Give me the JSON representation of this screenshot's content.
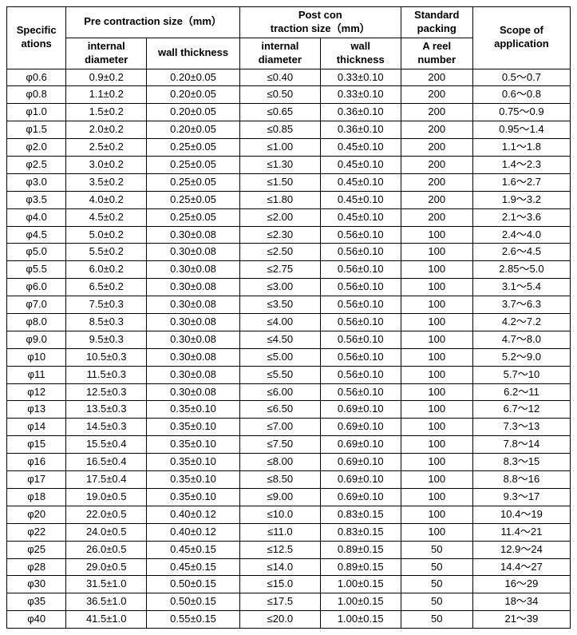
{
  "headers": {
    "specifications": "Specific\nations",
    "pre_contraction": "Pre contraction size（mm）",
    "post_contraction": "Post con\ntraction size（mm）",
    "standard_packing": "Standard\npacking",
    "scope": "Scope of\napplication",
    "internal_diameter": "internal\ndiameter",
    "wall_thickness": "wall thickness",
    "wall_thickness2": "wall\nthickness",
    "reel_number": "A reel\nnumber"
  },
  "rows": [
    {
      "spec": "φ0.6",
      "pre_id": "0.9±0.2",
      "pre_wt": "0.20±0.05",
      "post_id": "≤0.40",
      "post_wt": "0.33±0.10",
      "pack": "200",
      "scope": "0.5～0.7"
    },
    {
      "spec": "φ0.8",
      "pre_id": "1.1±0.2",
      "pre_wt": "0.20±0.05",
      "post_id": "≤0.50",
      "post_wt": "0.33±0.10",
      "pack": "200",
      "scope": "0.6～0.8"
    },
    {
      "spec": "φ1.0",
      "pre_id": "1.5±0.2",
      "pre_wt": "0.20±0.05",
      "post_id": "≤0.65",
      "post_wt": "0.36±0.10",
      "pack": "200",
      "scope": "0.75～0.9"
    },
    {
      "spec": "φ1.5",
      "pre_id": "2.0±0.2",
      "pre_wt": "0.20±0.05",
      "post_id": "≤0.85",
      "post_wt": "0.36±0.10",
      "pack": "200",
      "scope": "0.95～1.4"
    },
    {
      "spec": "φ2.0",
      "pre_id": "2.5±0.2",
      "pre_wt": "0.25±0.05",
      "post_id": "≤1.00",
      "post_wt": "0.45±0.10",
      "pack": "200",
      "scope": "1.1～1.8"
    },
    {
      "spec": "φ2.5",
      "pre_id": "3.0±0.2",
      "pre_wt": "0.25±0.05",
      "post_id": "≤1.30",
      "post_wt": "0.45±0.10",
      "pack": "200",
      "scope": "1.4～2.3"
    },
    {
      "spec": "φ3.0",
      "pre_id": "3.5±0.2",
      "pre_wt": "0.25±0.05",
      "post_id": "≤1.50",
      "post_wt": "0.45±0.10",
      "pack": "200",
      "scope": "1.6～2.7"
    },
    {
      "spec": "φ3.5",
      "pre_id": "4.0±0.2",
      "pre_wt": "0.25±0.05",
      "post_id": "≤1.80",
      "post_wt": "0.45±0.10",
      "pack": "200",
      "scope": "1.9～3.2"
    },
    {
      "spec": "φ4.0",
      "pre_id": "4.5±0.2",
      "pre_wt": "0.25±0.05",
      "post_id": "≤2.00",
      "post_wt": "0.45±0.10",
      "pack": "200",
      "scope": "2.1～3.6"
    },
    {
      "spec": "φ4.5",
      "pre_id": "5.0±0.2",
      "pre_wt": "0.30±0.08",
      "post_id": "≤2.30",
      "post_wt": "0.56±0.10",
      "pack": "100",
      "scope": "2.4～4.0"
    },
    {
      "spec": "φ5.0",
      "pre_id": "5.5±0.2",
      "pre_wt": "0.30±0.08",
      "post_id": "≤2.50",
      "post_wt": "0.56±0.10",
      "pack": "100",
      "scope": "2.6～4.5"
    },
    {
      "spec": "φ5.5",
      "pre_id": "6.0±0.2",
      "pre_wt": "0.30±0.08",
      "post_id": "≤2.75",
      "post_wt": "0.56±0.10",
      "pack": "100",
      "scope": "2.85～5.0"
    },
    {
      "spec": "φ6.0",
      "pre_id": "6.5±0.2",
      "pre_wt": "0.30±0.08",
      "post_id": "≤3.00",
      "post_wt": "0.56±0.10",
      "pack": "100",
      "scope": "3.1～5.4"
    },
    {
      "spec": "φ7.0",
      "pre_id": "7.5±0.3",
      "pre_wt": "0.30±0.08",
      "post_id": "≤3.50",
      "post_wt": "0.56±0.10",
      "pack": "100",
      "scope": "3.7～6.3"
    },
    {
      "spec": "φ8.0",
      "pre_id": "8.5±0.3",
      "pre_wt": "0.30±0.08",
      "post_id": "≤4.00",
      "post_wt": "0.56±0.10",
      "pack": "100",
      "scope": "4.2～7.2"
    },
    {
      "spec": "φ9.0",
      "pre_id": "9.5±0.3",
      "pre_wt": "0.30±0.08",
      "post_id": "≤4.50",
      "post_wt": "0.56±0.10",
      "pack": "100",
      "scope": "4.7～8.0"
    },
    {
      "spec": "φ10",
      "pre_id": "10.5±0.3",
      "pre_wt": "0.30±0.08",
      "post_id": "≤5.00",
      "post_wt": "0.56±0.10",
      "pack": "100",
      "scope": "5.2～9.0"
    },
    {
      "spec": "φ11",
      "pre_id": "11.5±0.3",
      "pre_wt": "0.30±0.08",
      "post_id": "≤5.50",
      "post_wt": "0.56±0.10",
      "pack": "100",
      "scope": "5.7～10"
    },
    {
      "spec": "φ12",
      "pre_id": "12.5±0.3",
      "pre_wt": "0.30±0.08",
      "post_id": "≤6.00",
      "post_wt": "0.56±0.10",
      "pack": "100",
      "scope": "6.2～11"
    },
    {
      "spec": "φ13",
      "pre_id": "13.5±0.3",
      "pre_wt": "0.35±0.10",
      "post_id": "≤6.50",
      "post_wt": "0.69±0.10",
      "pack": "100",
      "scope": "6.7～12"
    },
    {
      "spec": "φ14",
      "pre_id": "14.5±0.3",
      "pre_wt": "0.35±0.10",
      "post_id": "≤7.00",
      "post_wt": "0.69±0.10",
      "pack": "100",
      "scope": "7.3～13"
    },
    {
      "spec": "φ15",
      "pre_id": "15.5±0.4",
      "pre_wt": "0.35±0.10",
      "post_id": "≤7.50",
      "post_wt": "0.69±0.10",
      "pack": "100",
      "scope": "7.8～14"
    },
    {
      "spec": "φ16",
      "pre_id": "16.5±0.4",
      "pre_wt": "0.35±0.10",
      "post_id": "≤8.00",
      "post_wt": "0.69±0.10",
      "pack": "100",
      "scope": "8.3～15"
    },
    {
      "spec": "φ17",
      "pre_id": "17.5±0.4",
      "pre_wt": "0.35±0.10",
      "post_id": "≤8.50",
      "post_wt": "0.69±0.10",
      "pack": "100",
      "scope": "8.8～16"
    },
    {
      "spec": "φ18",
      "pre_id": "19.0±0.5",
      "pre_wt": "0.35±0.10",
      "post_id": "≤9.00",
      "post_wt": "0.69±0.10",
      "pack": "100",
      "scope": "9.3～17"
    },
    {
      "spec": "φ20",
      "pre_id": "22.0±0.5",
      "pre_wt": "0.40±0.12",
      "post_id": "≤10.0",
      "post_wt": "0.83±0.15",
      "pack": "100",
      "scope": "10.4～19"
    },
    {
      "spec": "φ22",
      "pre_id": "24.0±0.5",
      "pre_wt": "0.40±0.12",
      "post_id": "≤11.0",
      "post_wt": "0.83±0.15",
      "pack": "100",
      "scope": "11.4～21"
    },
    {
      "spec": "φ25",
      "pre_id": "26.0±0.5",
      "pre_wt": "0.45±0.15",
      "post_id": "≤12.5",
      "post_wt": "0.89±0.15",
      "pack": "50",
      "scope": "12.9～24"
    },
    {
      "spec": "φ28",
      "pre_id": "29.0±0.5",
      "pre_wt": "0.45±0.15",
      "post_id": "≤14.0",
      "post_wt": "0.89±0.15",
      "pack": "50",
      "scope": "14.4～27"
    },
    {
      "spec": "φ30",
      "pre_id": "31.5±1.0",
      "pre_wt": "0.50±0.15",
      "post_id": "≤15.0",
      "post_wt": "1.00±0.15",
      "pack": "50",
      "scope": "16～29"
    },
    {
      "spec": "φ35",
      "pre_id": "36.5±1.0",
      "pre_wt": "0.50±0.15",
      "post_id": "≤17.5",
      "post_wt": "1.00±0.15",
      "pack": "50",
      "scope": "18～34"
    },
    {
      "spec": "φ40",
      "pre_id": "41.5±1.0",
      "pre_wt": "0.55±0.15",
      "post_id": "≤20.0",
      "post_wt": "1.00±0.15",
      "pack": "50",
      "scope": "21～39"
    }
  ],
  "style": {
    "background_color": "#ffffff",
    "border_color": "#000000",
    "font_family": "Arial",
    "header_fontsize": 13,
    "cell_fontsize": 13,
    "header_fontweight": "bold"
  }
}
